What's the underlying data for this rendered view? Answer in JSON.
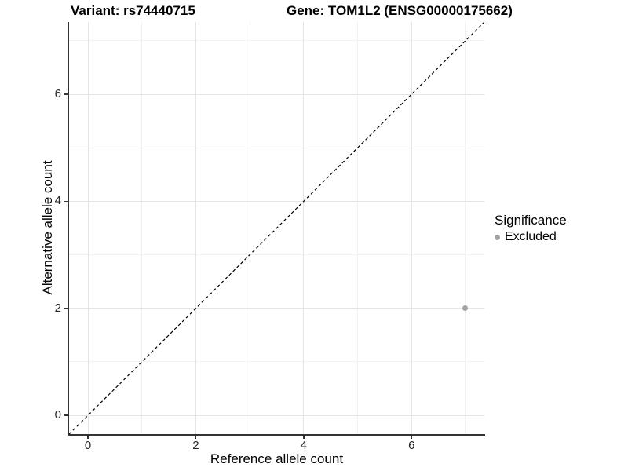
{
  "titles": {
    "variant": "Variant: rs74440715",
    "gene": "Gene: TOM1L2 (ENSG00000175662)"
  },
  "chart_data": {
    "type": "scatter",
    "titles": {
      "left": "Variant: rs74440715",
      "right": "Gene: TOM1L2 (ENSG00000175662)"
    },
    "xlabel": "Reference allele count",
    "ylabel": "Alternative allele count",
    "xlim": [
      -0.35,
      7.35
    ],
    "ylim": [
      -0.35,
      7.35
    ],
    "x_ticks": [
      0,
      2,
      4,
      6
    ],
    "y_ticks": [
      0,
      2,
      4,
      6
    ],
    "grid": {
      "major": true,
      "minor": true,
      "major_color": "#e5e5e5",
      "minor_color": "#f2f2f2"
    },
    "panel": {
      "background": "#ffffff",
      "axis_line_color": "#333333"
    },
    "identity_line": {
      "style": "dashed",
      "color": "#000000",
      "dash": "4,3",
      "width": 1.2
    },
    "legend": {
      "title": "Significance",
      "position": "right"
    },
    "series": [
      {
        "name": "Excluded",
        "color": "#a3a3a3",
        "points": [
          {
            "x": 7,
            "y": 2
          }
        ]
      }
    ]
  }
}
